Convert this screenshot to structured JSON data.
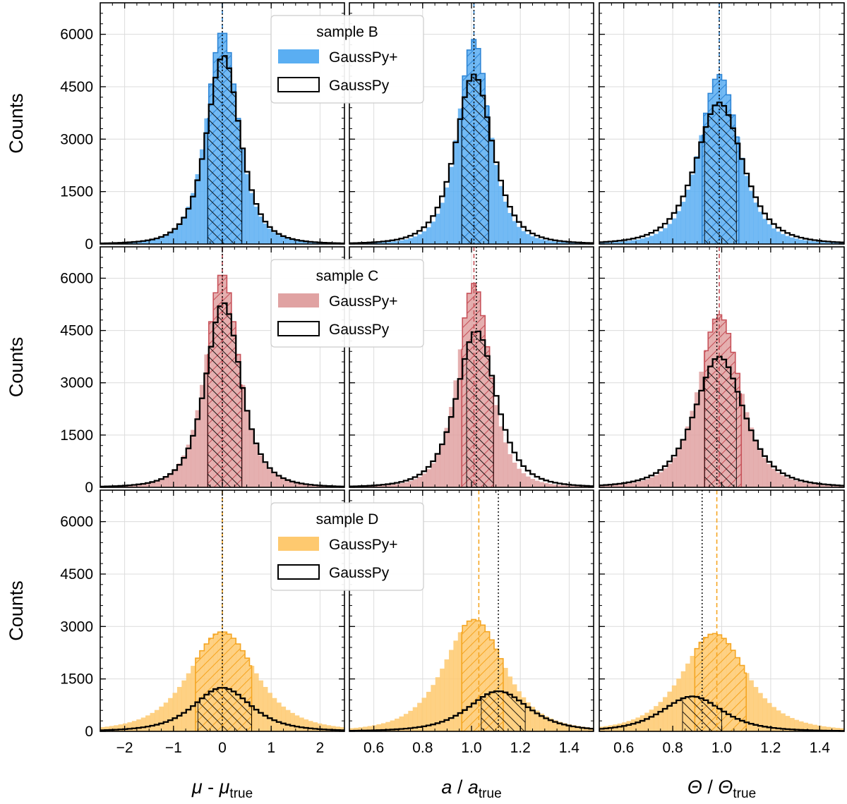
{
  "figure": {
    "x_labels": [
      {
        "var": "μ",
        "sep": " - ",
        "var2": "μ",
        "sub": "true"
      },
      {
        "var": "a",
        "sep": " / ",
        "var2": "a",
        "sub": "true"
      },
      {
        "var": "Θ",
        "sep": " / ",
        "var2": "Θ",
        "sub": "true"
      }
    ],
    "y_label": "Counts"
  },
  "chart_data": [
    {
      "type": "histogram",
      "row": "sample B",
      "legend": {
        "title": "sample B",
        "entries": [
          "GaussPy+",
          "GaussPy"
        ],
        "placement": "top-left of first panel"
      },
      "color": "#5aaef2",
      "edge_color": "#2f86d6",
      "ylim": [
        0,
        6900
      ],
      "yticks": [
        0,
        1500,
        3000,
        4500,
        6000
      ],
      "panels": [
        {
          "column": "mu",
          "xlim": [
            -2.5,
            2.5
          ],
          "xticks": [
            -2,
            -1,
            0,
            1,
            2
          ],
          "tick_labels": [
            "−2",
            "−1",
            "0",
            "1",
            "2"
          ],
          "gausspy_plus": {
            "peak": 6100,
            "center": 0.0,
            "width": 0.34
          },
          "gausspy": {
            "peak": 5400,
            "center": 0.02,
            "width": 0.36
          },
          "iqr_plus": [
            -0.3,
            0.4
          ],
          "iqr": [
            -0.3,
            0.4
          ],
          "median_plus": 0.0,
          "median": 0.0
        },
        {
          "column": "amplitude",
          "xlim": [
            0.5,
            1.5
          ],
          "xticks": [
            0.6,
            0.8,
            1.0,
            1.2,
            1.4
          ],
          "tick_labels": [
            "0.6",
            "0.8",
            "1.0",
            "1.2",
            "1.4"
          ],
          "gausspy_plus": {
            "peak": 5850,
            "center": 1.01,
            "width": 0.068
          },
          "gausspy": {
            "peak": 4850,
            "center": 1.01,
            "width": 0.08
          },
          "iqr_plus": [
            0.96,
            1.07
          ],
          "iqr": [
            0.96,
            1.07
          ],
          "median_plus": 1.01,
          "median": 1.01
        },
        {
          "column": "fwhm",
          "xlim": [
            0.5,
            1.5
          ],
          "xticks": [
            0.6,
            0.8,
            1.0,
            1.2,
            1.4
          ],
          "tick_labels": [
            "0.6",
            "0.8",
            "1.0",
            "1.2",
            "1.4"
          ],
          "gausspy_plus": {
            "peak": 4850,
            "center": 0.99,
            "width": 0.085
          },
          "gausspy": {
            "peak": 4050,
            "center": 0.99,
            "width": 0.1
          },
          "iqr_plus": [
            0.92,
            1.07
          ],
          "iqr": [
            0.93,
            1.06
          ],
          "median_plus": 0.99,
          "median": 0.99
        }
      ]
    },
    {
      "type": "histogram",
      "row": "sample C",
      "legend": {
        "title": "sample C",
        "entries": [
          "GaussPy+",
          "GaussPy"
        ],
        "placement": "top-left of first panel"
      },
      "color": "#e0a2a2",
      "edge_color": "#c7525a",
      "ylim": [
        0,
        6900
      ],
      "yticks": [
        0,
        1500,
        3000,
        4500,
        6000
      ],
      "panels": [
        {
          "column": "mu",
          "xlim": [
            -2.5,
            2.5
          ],
          "xticks": [
            -2,
            -1,
            0,
            1,
            2
          ],
          "tick_labels": [
            "−2",
            "−1",
            "0",
            "1",
            "2"
          ],
          "gausspy_plus": {
            "peak": 6150,
            "center": 0.0,
            "width": 0.36
          },
          "gausspy": {
            "peak": 5300,
            "center": 0.02,
            "width": 0.38
          },
          "iqr_plus": [
            -0.3,
            0.4
          ],
          "iqr": [
            -0.3,
            0.4
          ],
          "median_plus": 0.0,
          "median": 0.0
        },
        {
          "column": "amplitude",
          "xlim": [
            0.5,
            1.5
          ],
          "xticks": [
            0.6,
            0.8,
            1.0,
            1.2,
            1.4
          ],
          "tick_labels": [
            "0.6",
            "0.8",
            "1.0",
            "1.2",
            "1.4"
          ],
          "gausspy_plus": {
            "peak": 5850,
            "center": 1.01,
            "width": 0.07
          },
          "gausspy": {
            "peak": 4500,
            "center": 1.02,
            "width": 0.085
          },
          "iqr_plus": [
            0.96,
            1.09
          ],
          "iqr": [
            0.98,
            1.09
          ],
          "median_plus": 1.01,
          "median": 1.02
        },
        {
          "column": "fwhm",
          "xlim": [
            0.5,
            1.5
          ],
          "xticks": [
            0.6,
            0.8,
            1.0,
            1.2,
            1.4
          ],
          "tick_labels": [
            "0.6",
            "0.8",
            "1.0",
            "1.2",
            "1.4"
          ],
          "gausspy_plus": {
            "peak": 4950,
            "center": 0.99,
            "width": 0.09
          },
          "gausspy": {
            "peak": 3750,
            "center": 0.99,
            "width": 0.105
          },
          "iqr_plus": [
            0.93,
            1.08
          ],
          "iqr": [
            0.93,
            1.06
          ],
          "median_plus": 0.99,
          "median": 0.98
        }
      ]
    },
    {
      "type": "histogram",
      "row": "sample D",
      "legend": {
        "title": "sample D",
        "entries": [
          "GaussPy+",
          "GaussPy"
        ],
        "placement": "top-left of first panel"
      },
      "color": "#fec96f",
      "edge_color": "#f5a623",
      "ylim": [
        0,
        6900
      ],
      "yticks": [
        0,
        1500,
        3000,
        4500,
        6000
      ],
      "panels": [
        {
          "column": "mu",
          "xlim": [
            -2.5,
            2.5
          ],
          "xticks": [
            -2,
            -1,
            0,
            1,
            2
          ],
          "tick_labels": [
            "−2",
            "−1",
            "0",
            "1",
            "2"
          ],
          "gausspy_plus": {
            "peak": 2850,
            "center": 0.0,
            "width": 0.72
          },
          "gausspy": {
            "peak": 1250,
            "center": 0.0,
            "width": 0.62
          },
          "iqr_plus": [
            -0.55,
            0.6
          ],
          "iqr": [
            -0.5,
            0.6
          ],
          "median_plus": 0.0,
          "median": 0.0
        },
        {
          "column": "amplitude",
          "xlim": [
            0.5,
            1.5
          ],
          "xticks": [
            0.6,
            0.8,
            1.0,
            1.2,
            1.4
          ],
          "tick_labels": [
            "0.6",
            "0.8",
            "1.0",
            "1.2",
            "1.4"
          ],
          "gausspy_plus": {
            "peak": 3200,
            "center": 1.01,
            "width": 0.13
          },
          "gausspy": {
            "peak": 1150,
            "center": 1.11,
            "width": 0.13
          },
          "iqr_plus": [
            0.96,
            1.13
          ],
          "iqr": [
            1.04,
            1.22
          ],
          "median_plus": 1.03,
          "median": 1.11
        },
        {
          "column": "fwhm",
          "xlim": [
            0.5,
            1.5
          ],
          "xticks": [
            0.6,
            0.8,
            1.0,
            1.2,
            1.4
          ],
          "tick_labels": [
            "0.6",
            "0.8",
            "1.0",
            "1.2",
            "1.4"
          ],
          "gausspy_plus": {
            "peak": 2800,
            "center": 0.97,
            "width": 0.14
          },
          "gausspy": {
            "peak": 1000,
            "center": 0.88,
            "width": 0.13
          },
          "iqr_plus": [
            0.89,
            1.1
          ],
          "iqr": [
            0.84,
            1.0
          ],
          "median_plus": 0.98,
          "median": 0.92
        }
      ]
    }
  ]
}
